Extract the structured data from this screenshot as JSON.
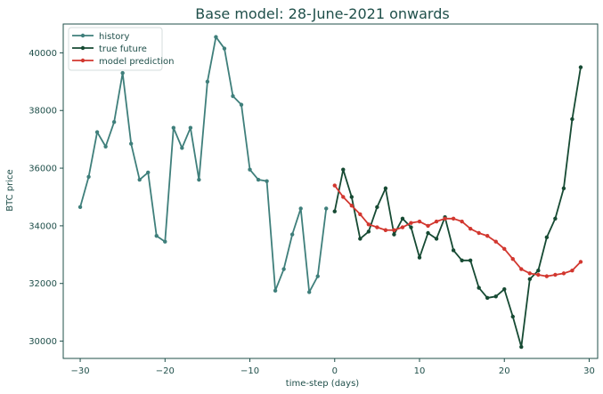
{
  "chart_data": {
    "type": "line",
    "title": "Base model: 28-June-2021 onwards",
    "xlabel": "time-step (days)",
    "ylabel": "BTC price",
    "xlim": [
      -32,
      31
    ],
    "ylim": [
      29400,
      41000
    ],
    "x_ticks": [
      -30,
      -20,
      -10,
      0,
      10,
      20,
      30
    ],
    "x_tick_labels": [
      "−30",
      "−20",
      "−10",
      "0",
      "10",
      "20",
      "30"
    ],
    "y_ticks": [
      30000,
      32000,
      34000,
      36000,
      38000,
      40000
    ],
    "y_tick_labels": [
      "30000",
      "32000",
      "34000",
      "36000",
      "38000",
      "40000"
    ],
    "grid": false,
    "legend_position": "top-left",
    "series": [
      {
        "name": "history",
        "color": "#3f7f7b",
        "marker": "dot",
        "x": [
          -30,
          -29,
          -28,
          -27,
          -26,
          -25,
          -24,
          -23,
          -22,
          -21,
          -20,
          -19,
          -18,
          -17,
          -16,
          -15,
          -14,
          -13,
          -12,
          -11,
          -10,
          -9,
          -8,
          -7,
          -6,
          -5,
          -4,
          -3,
          -2,
          -1
        ],
        "y": [
          34650,
          35700,
          37250,
          36750,
          37600,
          39300,
          36850,
          35600,
          35850,
          33650,
          33450,
          37400,
          36700,
          37400,
          35600,
          39000,
          40550,
          40150,
          38500,
          38200,
          35950,
          35600,
          35550,
          31750,
          32500,
          33700,
          34600,
          31700,
          32250,
          34600
        ]
      },
      {
        "name": "true future",
        "color": "#164a33",
        "marker": "dot",
        "x": [
          0,
          1,
          2,
          3,
          4,
          5,
          6,
          7,
          8,
          9,
          10,
          11,
          12,
          13,
          14,
          15,
          16,
          17,
          18,
          19,
          20,
          21,
          22,
          23,
          24,
          25,
          26,
          27,
          28,
          29
        ],
        "y": [
          34500,
          35950,
          35000,
          33550,
          33800,
          34650,
          35300,
          33700,
          34250,
          33950,
          32900,
          33750,
          33550,
          34300,
          33150,
          32800,
          32800,
          31850,
          31500,
          31550,
          31800,
          30850,
          29800,
          32150,
          32450,
          33600,
          34250,
          35300,
          37700,
          39500
        ]
      },
      {
        "name": "model prediction",
        "color": "#d2372f",
        "marker": "dot",
        "x": [
          0,
          1,
          2,
          3,
          4,
          5,
          6,
          7,
          8,
          9,
          10,
          11,
          12,
          13,
          14,
          15,
          16,
          17,
          18,
          19,
          20,
          21,
          22,
          23,
          24,
          25,
          26,
          27,
          28,
          29
        ],
        "y": [
          35400,
          35000,
          34700,
          34400,
          34050,
          33950,
          33850,
          33850,
          33950,
          34100,
          34150,
          34000,
          34150,
          34250,
          34250,
          34150,
          33900,
          33750,
          33650,
          33450,
          33200,
          32850,
          32500,
          32350,
          32300,
          32250,
          32300,
          32350,
          32450,
          32750
        ]
      }
    ]
  }
}
